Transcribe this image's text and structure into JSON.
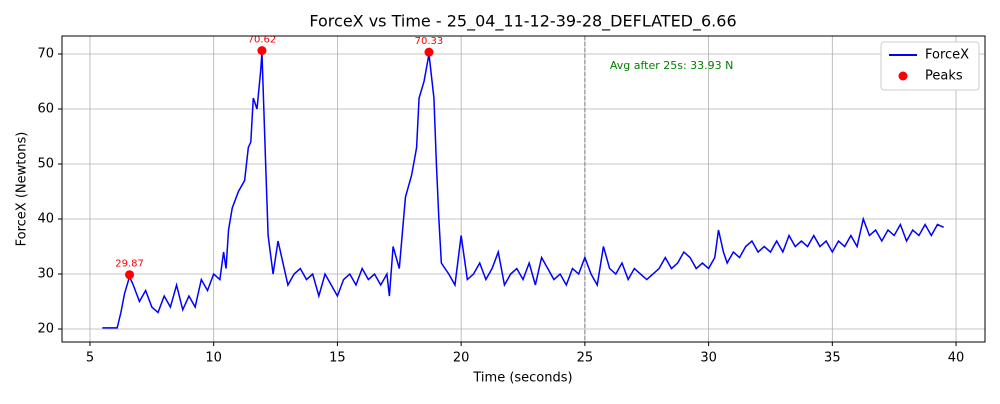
{
  "chart_data": {
    "type": "line",
    "title": "ForceX vs Time - 25_04_11-12-39-28_DEFLATED_6.66",
    "x_label": "Time (seconds)",
    "y_label": "ForceX (Newtons)",
    "xlim": [
      3.87,
      41.17
    ],
    "ylim": [
      17.64,
      73.27
    ],
    "xticks": [
      5,
      10,
      15,
      20,
      25,
      30,
      35,
      40
    ],
    "yticks": [
      20,
      30,
      40,
      50,
      60,
      70
    ],
    "grid": true,
    "legend": "upper right",
    "vline": {
      "x": 25,
      "color": "gray"
    },
    "annotations": [
      {
        "text": "Avg after 25s: 33.93 N",
        "color": "green"
      }
    ],
    "series": [
      {
        "name": "ForceX",
        "type": "line",
        "color": "blue",
        "x": [
          5.5,
          5.75,
          6.0,
          6.1,
          6.25,
          6.4,
          6.6,
          6.75,
          7.0,
          7.25,
          7.5,
          7.75,
          8.0,
          8.25,
          8.5,
          8.75,
          9.0,
          9.25,
          9.5,
          9.75,
          10.0,
          10.25,
          10.4,
          10.5,
          10.6,
          10.75,
          11.0,
          11.25,
          11.4,
          11.5,
          11.6,
          11.75,
          11.9,
          11.95,
          12.1,
          12.2,
          12.4,
          12.6,
          12.8,
          13.0,
          13.25,
          13.5,
          13.75,
          14.0,
          14.25,
          14.5,
          14.75,
          15.0,
          15.25,
          15.5,
          15.75,
          16.0,
          16.25,
          16.5,
          16.75,
          17.0,
          17.1,
          17.25,
          17.5,
          17.75,
          18.0,
          18.2,
          18.3,
          18.5,
          18.7,
          18.9,
          19.0,
          19.1,
          19.2,
          19.5,
          19.75,
          20.0,
          20.25,
          20.5,
          20.75,
          21.0,
          21.25,
          21.5,
          21.75,
          22.0,
          22.25,
          22.5,
          22.75,
          23.0,
          23.25,
          23.5,
          23.75,
          24.0,
          24.25,
          24.5,
          24.75,
          25.0,
          25.25,
          25.5,
          25.75,
          26.0,
          26.25,
          26.5,
          26.75,
          27.0,
          27.25,
          27.5,
          27.75,
          28.0,
          28.25,
          28.5,
          28.75,
          29.0,
          29.25,
          29.5,
          29.75,
          30.0,
          30.25,
          30.4,
          30.6,
          30.75,
          31.0,
          31.25,
          31.5,
          31.75,
          32.0,
          32.25,
          32.5,
          32.75,
          33.0,
          33.25,
          33.5,
          33.75,
          34.0,
          34.25,
          34.5,
          34.75,
          35.0,
          35.25,
          35.5,
          35.75,
          36.0,
          36.25,
          36.5,
          36.75,
          37.0,
          37.25,
          37.5,
          37.75,
          38.0,
          38.25,
          38.5,
          38.75,
          39.0,
          39.25,
          39.5
        ],
        "values": [
          20.2,
          20.2,
          20.2,
          20.2,
          23,
          26.5,
          29.5,
          28,
          25,
          27,
          24,
          23,
          26,
          24,
          28,
          23.5,
          26,
          24,
          29,
          27,
          30,
          29,
          34,
          31,
          38,
          42,
          45,
          47,
          53,
          54,
          62,
          60,
          67,
          70.3,
          50,
          37,
          30,
          36,
          32,
          28,
          30,
          31,
          29,
          30,
          26,
          30,
          28,
          26,
          29,
          30,
          28,
          31,
          29,
          30,
          28,
          30,
          26,
          35,
          31,
          44,
          48,
          53,
          62,
          65,
          70,
          62,
          50,
          40,
          32,
          30,
          28,
          37,
          29,
          30,
          32,
          29,
          31,
          34,
          28,
          30,
          31,
          29,
          32,
          28,
          33,
          31,
          29,
          30,
          28,
          31,
          30,
          33,
          30,
          28,
          35,
          31,
          30,
          32,
          29,
          31,
          30,
          29,
          30,
          31,
          33,
          31,
          32,
          34,
          33,
          31,
          32,
          31,
          33,
          38,
          34,
          32,
          34,
          33,
          35,
          36,
          34,
          35,
          34,
          36,
          34,
          37,
          35,
          36,
          35,
          37,
          35,
          36,
          34,
          36,
          35,
          37,
          35,
          40,
          37,
          38,
          36,
          38,
          37,
          39,
          36,
          38,
          37,
          39,
          37,
          39,
          38.5
        ]
      },
      {
        "name": "Peaks",
        "type": "scatter",
        "color": "red",
        "x": [
          6.6,
          11.95,
          18.7
        ],
        "values": [
          29.87,
          70.62,
          70.33
        ]
      }
    ]
  }
}
